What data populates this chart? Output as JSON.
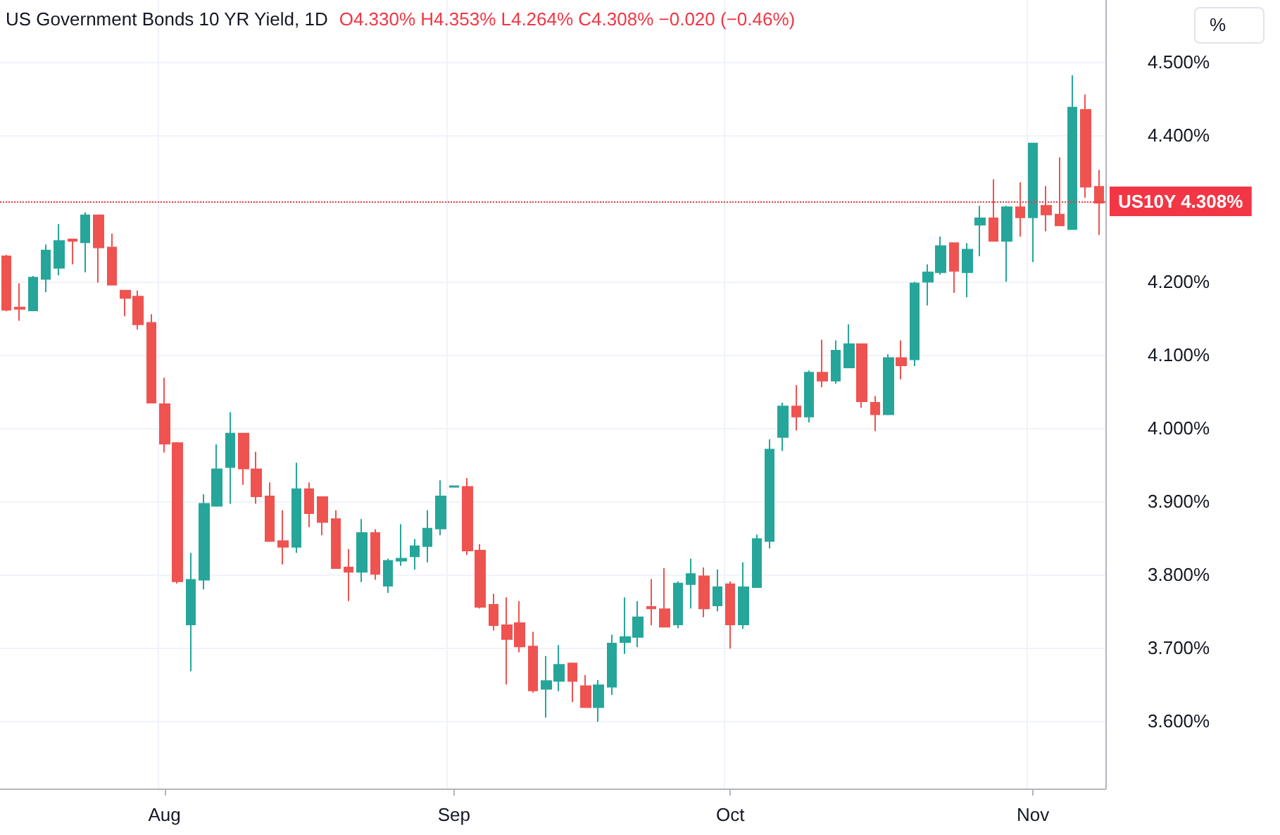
{
  "chart_data": {
    "type": "candlestick",
    "title": "US Government Bonds 10 YR Yield, 1D",
    "ylabel": "%",
    "annotations": [
      "O4.330% H4.353% L4.264% C4.308% −0.020 (−0.46%)"
    ],
    "categories": [
      null,
      null,
      null,
      null,
      null,
      null,
      null,
      null,
      null,
      null,
      null,
      null,
      "Aug",
      null,
      null,
      null,
      null,
      null,
      null,
      null,
      null,
      null,
      null,
      null,
      null,
      null,
      null,
      null,
      null,
      null,
      null,
      null,
      null,
      null,
      "Sep",
      null,
      null,
      null,
      null,
      null,
      null,
      null,
      null,
      null,
      null,
      null,
      null,
      null,
      null,
      null,
      null,
      null,
      null,
      null,
      null,
      "Oct",
      null,
      null,
      null,
      null,
      null,
      null,
      null,
      null,
      null,
      null,
      null,
      null,
      null,
      null,
      null,
      null,
      null,
      null,
      null,
      null,
      null,
      null,
      "Nov",
      null,
      null,
      null,
      null,
      null
    ],
    "ohlc": [
      [
        4.235,
        4.237,
        4.16,
        4.162
      ],
      [
        4.165,
        4.198,
        4.147,
        4.163
      ],
      [
        4.161,
        4.208,
        4.16,
        4.206
      ],
      [
        4.204,
        4.251,
        4.186,
        4.243
      ],
      [
        4.219,
        4.279,
        4.209,
        4.256
      ],
      [
        4.258,
        4.258,
        4.224,
        4.256
      ],
      [
        4.254,
        4.295,
        4.213,
        4.291
      ],
      [
        4.291,
        4.292,
        4.199,
        4.247
      ],
      [
        4.247,
        4.266,
        4.195,
        4.196
      ],
      [
        4.188,
        4.188,
        4.153,
        4.178
      ],
      [
        4.18,
        4.188,
        4.135,
        4.142
      ],
      [
        4.144,
        4.156,
        4.034,
        4.035
      ],
      [
        4.033,
        4.069,
        3.967,
        3.979
      ],
      [
        3.98,
        3.981,
        3.788,
        3.791
      ],
      [
        3.732,
        3.83,
        3.668,
        3.793
      ],
      [
        3.793,
        3.91,
        3.78,
        3.897
      ],
      [
        3.894,
        3.978,
        3.893,
        3.944
      ],
      [
        3.947,
        4.022,
        3.897,
        3.993
      ],
      [
        3.993,
        3.993,
        3.923,
        3.945
      ],
      [
        3.944,
        3.968,
        3.897,
        3.907
      ],
      [
        3.907,
        3.926,
        3.845,
        3.846
      ],
      [
        3.846,
        3.888,
        3.814,
        3.838
      ],
      [
        3.838,
        3.953,
        3.83,
        3.917
      ],
      [
        3.917,
        3.926,
        3.865,
        3.884
      ],
      [
        3.906,
        3.907,
        3.854,
        3.872
      ],
      [
        3.876,
        3.888,
        3.808,
        3.809
      ],
      [
        3.81,
        3.835,
        3.764,
        3.804
      ],
      [
        3.804,
        3.876,
        3.79,
        3.857
      ],
      [
        3.857,
        3.862,
        3.793,
        3.801
      ],
      [
        3.785,
        3.822,
        3.775,
        3.819
      ],
      [
        3.819,
        3.869,
        3.812,
        3.822
      ],
      [
        3.825,
        3.849,
        3.807,
        3.839
      ],
      [
        3.839,
        3.888,
        3.817,
        3.863
      ],
      [
        3.863,
        3.929,
        3.854,
        3.907
      ],
      [
        3.92,
        3.921,
        3.92,
        3.921
      ],
      [
        3.92,
        3.932,
        3.827,
        3.833
      ],
      [
        3.833,
        3.842,
        3.754,
        3.756
      ],
      [
        3.759,
        3.774,
        3.724,
        3.731
      ],
      [
        3.731,
        3.769,
        3.65,
        3.712
      ],
      [
        3.734,
        3.764,
        3.694,
        3.702
      ],
      [
        3.702,
        3.722,
        3.639,
        3.642
      ],
      [
        3.644,
        3.689,
        3.605,
        3.655
      ],
      [
        3.655,
        3.704,
        3.641,
        3.677
      ],
      [
        3.679,
        3.679,
        3.626,
        3.655
      ],
      [
        3.648,
        3.663,
        3.618,
        3.619
      ],
      [
        3.619,
        3.656,
        3.599,
        3.649
      ],
      [
        3.647,
        3.718,
        3.636,
        3.706
      ],
      [
        3.708,
        3.769,
        3.692,
        3.715
      ],
      [
        3.715,
        3.764,
        3.701,
        3.742
      ],
      [
        3.756,
        3.794,
        3.731,
        3.754
      ],
      [
        3.753,
        3.809,
        3.728,
        3.729
      ],
      [
        3.732,
        3.791,
        3.727,
        3.788
      ],
      [
        3.787,
        3.822,
        3.754,
        3.801
      ],
      [
        3.798,
        3.81,
        3.742,
        3.754
      ],
      [
        3.758,
        3.807,
        3.75,
        3.783
      ],
      [
        3.787,
        3.791,
        3.699,
        3.732
      ],
      [
        3.732,
        3.817,
        3.726,
        3.783
      ],
      [
        3.783,
        3.855,
        3.782,
        3.849
      ],
      [
        3.846,
        3.985,
        3.836,
        3.971
      ],
      [
        3.988,
        4.035,
        3.969,
        4.03
      ],
      [
        4.03,
        4.059,
        3.997,
        4.016
      ],
      [
        4.016,
        4.079,
        4.008,
        4.076
      ],
      [
        4.076,
        4.121,
        4.056,
        4.065
      ],
      [
        4.065,
        4.12,
        4.061,
        4.106
      ],
      [
        4.083,
        4.142,
        4.083,
        4.115
      ],
      [
        4.115,
        4.115,
        4.028,
        4.037
      ],
      [
        4.035,
        4.044,
        3.996,
        4.019
      ],
      [
        4.019,
        4.101,
        4.018,
        4.096
      ],
      [
        4.096,
        4.12,
        4.067,
        4.086
      ],
      [
        4.094,
        4.2,
        4.085,
        4.198
      ],
      [
        4.2,
        4.224,
        4.168,
        4.213
      ],
      [
        4.213,
        4.262,
        4.21,
        4.249
      ],
      [
        4.253,
        4.253,
        4.185,
        4.215
      ],
      [
        4.213,
        4.253,
        4.179,
        4.244
      ],
      [
        4.278,
        4.304,
        4.235,
        4.287
      ],
      [
        4.287,
        4.34,
        4.255,
        4.256
      ],
      [
        4.256,
        4.304,
        4.2,
        4.302
      ],
      [
        4.302,
        4.336,
        4.262,
        4.288
      ],
      [
        4.288,
        4.39,
        4.227,
        4.389
      ],
      [
        4.304,
        4.331,
        4.269,
        4.292
      ],
      [
        4.292,
        4.37,
        4.276,
        4.277
      ],
      [
        4.272,
        4.482,
        4.271,
        4.438
      ],
      [
        4.435,
        4.456,
        4.315,
        4.33
      ],
      [
        4.33,
        4.353,
        4.264,
        4.308
      ]
    ],
    "colors": [
      "#ef5350",
      "#ef5350",
      "#26a69a",
      "#26a69a",
      "#26a69a",
      "#ef5350",
      "#26a69a",
      "#ef5350",
      "#ef5350",
      "#ef5350",
      "#ef5350",
      "#ef5350",
      "#ef5350",
      "#ef5350",
      "#26a69a",
      "#26a69a",
      "#26a69a",
      "#26a69a",
      "#ef5350",
      "#ef5350",
      "#ef5350",
      "#ef5350",
      "#26a69a",
      "#ef5350",
      "#ef5350",
      "#ef5350",
      "#ef5350",
      "#26a69a",
      "#ef5350",
      "#26a69a",
      "#26a69a",
      "#26a69a",
      "#26a69a",
      "#26a69a",
      "#26a69a",
      "#ef5350",
      "#ef5350",
      "#ef5350",
      "#ef5350",
      "#ef5350",
      "#ef5350",
      "#26a69a",
      "#26a69a",
      "#ef5350",
      "#ef5350",
      "#26a69a",
      "#26a69a",
      "#26a69a",
      "#26a69a",
      "#ef5350",
      "#ef5350",
      "#26a69a",
      "#26a69a",
      "#ef5350",
      "#26a69a",
      "#ef5350",
      "#26a69a",
      "#26a69a",
      "#26a69a",
      "#26a69a",
      "#ef5350",
      "#26a69a",
      "#ef5350",
      "#26a69a",
      "#26a69a",
      "#ef5350",
      "#ef5350",
      "#26a69a",
      "#ef5350",
      "#26a69a",
      "#26a69a",
      "#26a69a",
      "#ef5350",
      "#26a69a",
      "#26a69a",
      "#ef5350",
      "#26a69a",
      "#ef5350",
      "#26a69a",
      "#ef5350",
      "#ef5350",
      "#26a69a",
      "#ef5350",
      "#ef5350"
    ],
    "ylim": [
      3.508,
      4.585
    ],
    "yticks": [
      {
        "value": 3.6,
        "label": "3.600%"
      },
      {
        "value": 3.7,
        "label": "3.700%"
      },
      {
        "value": 3.8,
        "label": "3.800%"
      },
      {
        "value": 3.9,
        "label": "3.900%"
      },
      {
        "value": 4.0,
        "label": "4.000%"
      },
      {
        "value": 4.1,
        "label": "4.100%"
      },
      {
        "value": 4.2,
        "label": "4.200%"
      },
      {
        "value": 4.4,
        "label": "4.400%"
      },
      {
        "value": 4.5,
        "label": "4.500%"
      }
    ],
    "ref_lines": [
      {
        "axis": "y",
        "value": 4.308,
        "label": "US10Y 4.308%",
        "color": "#f23645",
        "line_style": "dotted"
      }
    ],
    "grid": true
  }
}
